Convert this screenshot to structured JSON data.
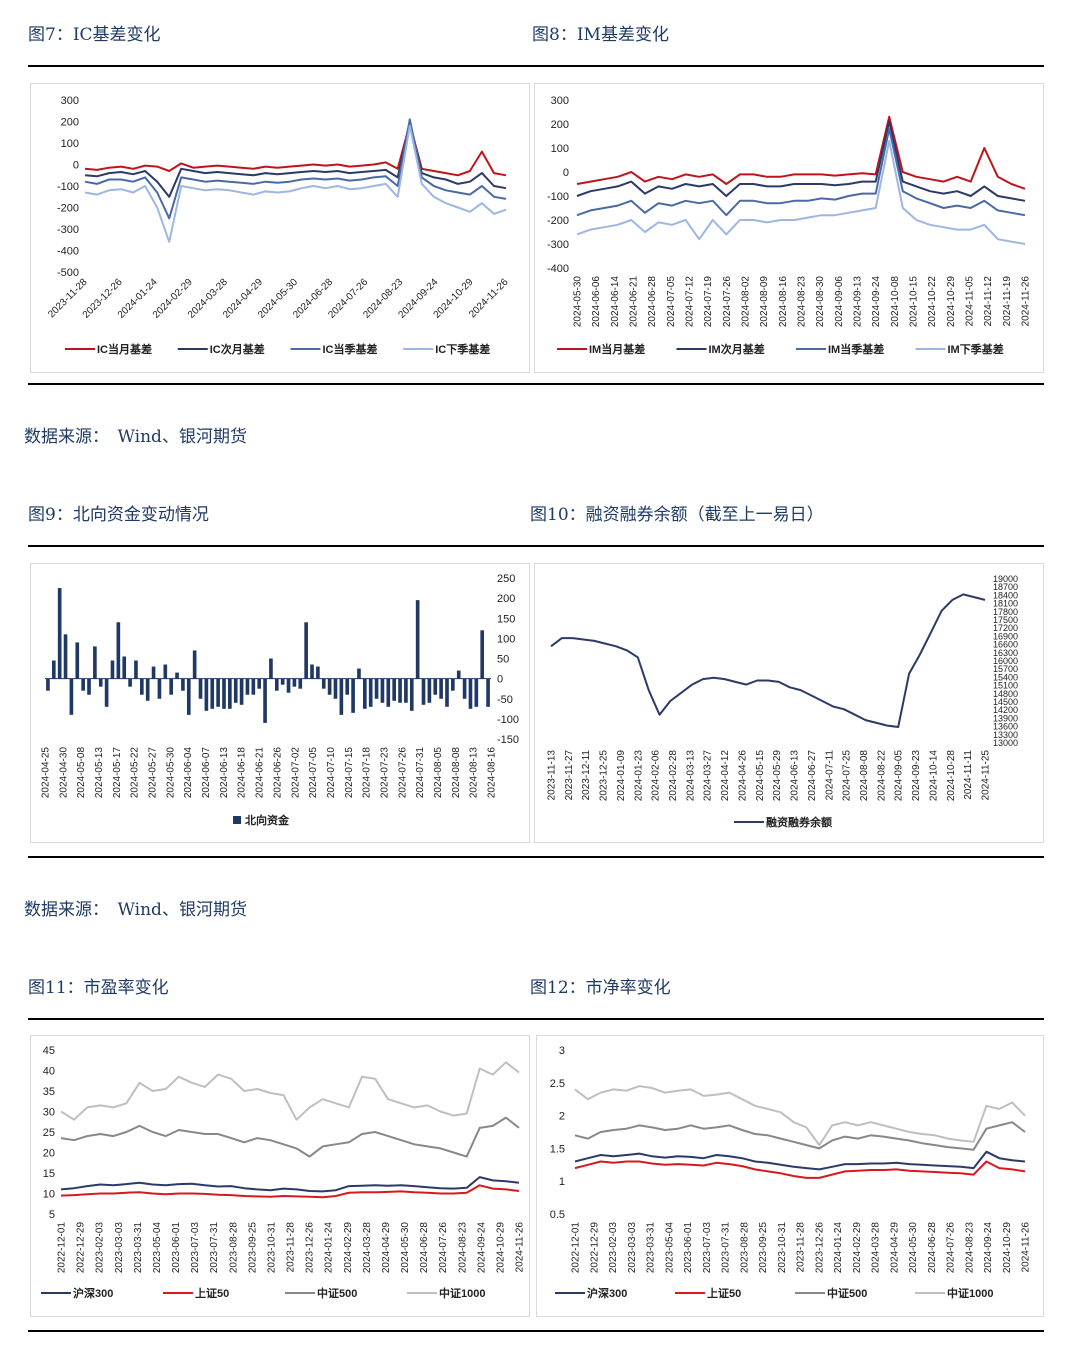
{
  "figures": {
    "fig7": {
      "title": "图7：IC基差变化"
    },
    "fig8": {
      "title": "图8：IM基差变化"
    },
    "fig9": {
      "title": "图9：北向资金变动情况"
    },
    "fig10": {
      "title": "图10：融资融券余额（截至上一易日）"
    },
    "fig11": {
      "title": "图11：市盈率变化"
    },
    "fig12": {
      "title": "图12：市净率变化"
    }
  },
  "sources": [
    "数据来源：　Wind、银河期货",
    "数据来源：　Wind、银河期货"
  ],
  "chart_data": [
    {
      "id": "fig7",
      "type": "line",
      "title": "",
      "ylim": [
        -500,
        300
      ],
      "yticks": [
        300,
        200,
        100,
        0,
        -100,
        -200,
        -300,
        -400,
        -500
      ],
      "xticks": [
        "2023-11-28",
        "2023-12-26",
        "2024-01-24",
        "2024-02-29",
        "2024-03-28",
        "2024-04-29",
        "2024-05-30",
        "2024-06-28",
        "2024-07-26",
        "2024-08-23",
        "2024-09-24",
        "2024-10-29",
        "2024-11-26"
      ],
      "legend_position": "bottom",
      "series": [
        {
          "name": "IC当月基差",
          "color": "#c0141c",
          "values": [
            -20,
            -25,
            -15,
            -10,
            -20,
            -5,
            -10,
            -30,
            5,
            -15,
            -10,
            -5,
            -10,
            -15,
            -20,
            -10,
            -15,
            -10,
            -5,
            0,
            -5,
            0,
            -10,
            -5,
            0,
            10,
            -20,
            190,
            -20,
            -30,
            -40,
            -50,
            -30,
            60,
            -40,
            -50
          ]
        },
        {
          "name": "IC次月基差",
          "color": "#2b3a67",
          "values": [
            -50,
            -55,
            -40,
            -35,
            -45,
            -30,
            -80,
            -150,
            -20,
            -30,
            -40,
            -35,
            -40,
            -45,
            -50,
            -40,
            -45,
            -40,
            -35,
            -30,
            -35,
            -30,
            -40,
            -35,
            -30,
            -25,
            -60,
            200,
            -40,
            -60,
            -70,
            -90,
            -80,
            -40,
            -100,
            -110
          ]
        },
        {
          "name": "IC当季基差",
          "color": "#4a6aa5",
          "values": [
            -80,
            -90,
            -70,
            -70,
            -80,
            -60,
            -130,
            -250,
            -60,
            -70,
            -80,
            -75,
            -80,
            -85,
            -90,
            -80,
            -85,
            -80,
            -70,
            -65,
            -70,
            -65,
            -75,
            -70,
            -60,
            -55,
            -100,
            210,
            -60,
            -100,
            -120,
            -130,
            -140,
            -100,
            -150,
            -160
          ]
        },
        {
          "name": "IC下季基差",
          "color": "#9db6e3",
          "values": [
            -130,
            -140,
            -120,
            -115,
            -130,
            -100,
            -200,
            -360,
            -100,
            -110,
            -120,
            -115,
            -120,
            -130,
            -140,
            -125,
            -130,
            -125,
            -110,
            -100,
            -110,
            -100,
            -115,
            -110,
            -100,
            -90,
            -150,
            180,
            -90,
            -150,
            -180,
            -200,
            -220,
            -180,
            -230,
            -210
          ]
        }
      ]
    },
    {
      "id": "fig8",
      "type": "line",
      "title": "",
      "ylim": [
        -400,
        300
      ],
      "yticks": [
        300,
        200,
        100,
        0,
        -100,
        -200,
        -300,
        -400
      ],
      "xticks": [
        "2024-05-30",
        "2024-06-06",
        "2024-06-14",
        "2024-06-21",
        "2024-06-28",
        "2024-07-05",
        "2024-07-12",
        "2024-07-19",
        "2024-07-26",
        "2024-08-02",
        "2024-08-09",
        "2024-08-16",
        "2024-08-23",
        "2024-08-30",
        "2024-09-06",
        "2024-09-13",
        "2024-09-24",
        "2024-10-08",
        "2024-10-15",
        "2024-10-22",
        "2024-10-29",
        "2024-11-05",
        "2024-11-12",
        "2024-11-19",
        "2024-11-26"
      ],
      "legend_position": "bottom",
      "series": [
        {
          "name": "IM当月基差",
          "color": "#c0141c",
          "values": [
            -50,
            -40,
            -30,
            -20,
            0,
            -40,
            -20,
            -30,
            -10,
            -20,
            -10,
            -50,
            -10,
            -10,
            -20,
            -20,
            -10,
            -10,
            -10,
            -15,
            -10,
            -5,
            -10,
            230,
            0,
            -20,
            -30,
            -40,
            -20,
            -40,
            100,
            -20,
            -50,
            -70
          ]
        },
        {
          "name": "IM次月基差",
          "color": "#2b3a67",
          "values": [
            -100,
            -80,
            -70,
            -60,
            -40,
            -90,
            -60,
            -70,
            -50,
            -60,
            -50,
            -100,
            -50,
            -50,
            -60,
            -60,
            -50,
            -50,
            -50,
            -55,
            -50,
            -40,
            -40,
            210,
            -40,
            -60,
            -80,
            -90,
            -80,
            -100,
            -60,
            -100,
            -110,
            -120
          ]
        },
        {
          "name": "IM当季基差",
          "color": "#4a6aa5",
          "values": [
            -180,
            -160,
            -150,
            -140,
            -120,
            -170,
            -130,
            -140,
            -120,
            -130,
            -120,
            -180,
            -120,
            -120,
            -130,
            -130,
            -120,
            -120,
            -110,
            -115,
            -100,
            -90,
            -90,
            180,
            -80,
            -110,
            -130,
            -150,
            -140,
            -150,
            -120,
            -160,
            -170,
            -180
          ]
        },
        {
          "name": "IM下季基差",
          "color": "#9db6e3",
          "values": [
            -260,
            -240,
            -230,
            -220,
            -200,
            -250,
            -210,
            -220,
            -200,
            -280,
            -200,
            -260,
            -200,
            -200,
            -210,
            -200,
            -200,
            -190,
            -180,
            -180,
            -170,
            -160,
            -150,
            130,
            -150,
            -200,
            -220,
            -230,
            -240,
            -240,
            -220,
            -280,
            -290,
            -300
          ]
        }
      ]
    },
    {
      "id": "fig9",
      "type": "bar",
      "title": "",
      "ylim": [
        -150,
        250
      ],
      "yticks": [
        250,
        200,
        150,
        100,
        50,
        0,
        -50,
        -100,
        -150
      ],
      "xticks": [
        "2024-04-25",
        "2024-04-30",
        "2024-05-08",
        "2024-05-13",
        "2024-05-17",
        "2024-05-22",
        "2024-05-27",
        "2024-05-30",
        "2024-06-04",
        "2024-06-07",
        "2024-06-13",
        "2024-06-18",
        "2024-06-21",
        "2024-06-26",
        "2024-07-02",
        "2024-07-05",
        "2024-07-10",
        "2024-07-15",
        "2024-07-18",
        "2024-07-23",
        "2024-07-26",
        "2024-07-31",
        "2024-08-05",
        "2024-08-08",
        "2024-08-13",
        "2024-08-16"
      ],
      "legend_position": "bottom",
      "series": [
        {
          "name": "北向资金",
          "color": "#1f3864",
          "values": [
            -30,
            45,
            225,
            110,
            -90,
            90,
            -30,
            -40,
            80,
            -20,
            -70,
            45,
            140,
            55,
            -20,
            45,
            -40,
            -55,
            30,
            -50,
            35,
            -40,
            15,
            -30,
            -90,
            70,
            -50,
            -80,
            -75,
            -70,
            -75,
            -75,
            -60,
            -65,
            -40,
            -40,
            -25,
            -110,
            50,
            -30,
            -15,
            -35,
            -20,
            -25,
            140,
            35,
            30,
            -25,
            -40,
            -50,
            -90,
            -40,
            -85,
            25,
            -75,
            -70,
            -50,
            -60,
            -70,
            -55,
            -60,
            -60,
            -80,
            195,
            -65,
            -60,
            -40,
            -50,
            -70,
            -30,
            20,
            -50,
            -75,
            -70,
            120,
            -70
          ]
        }
      ]
    },
    {
      "id": "fig10",
      "type": "line",
      "title": "",
      "ylim": [
        13000,
        19000
      ],
      "yticks": [
        19000,
        18700,
        18400,
        18100,
        17800,
        17500,
        17200,
        16900,
        16600,
        16300,
        16000,
        15700,
        15400,
        15100,
        14800,
        14500,
        14200,
        13900,
        13600,
        13300,
        13000
      ],
      "xticks": [
        "2023-11-13",
        "2023-11-27",
        "2023-12-11",
        "2023-12-25",
        "2024-01-09",
        "2024-01-23",
        "2024-02-06",
        "2024-02-28",
        "2024-03-13",
        "2024-03-27",
        "2024-04-12",
        "2024-04-26",
        "2024-05-15",
        "2024-05-29",
        "2024-06-13",
        "2024-06-27",
        "2024-07-11",
        "2024-07-25",
        "2024-08-08",
        "2024-08-22",
        "2024-09-05",
        "2024-09-23",
        "2024-10-14",
        "2024-10-28",
        "2024-11-11",
        "2024-11-25"
      ],
      "legend_position": "bottom",
      "series": [
        {
          "name": "融资融券余额",
          "color": "#2b3a67",
          "values": [
            16500,
            16800,
            16800,
            16750,
            16700,
            16600,
            16500,
            16350,
            16100,
            14900,
            14000,
            14500,
            14800,
            15100,
            15300,
            15350,
            15300,
            15200,
            15100,
            15250,
            15250,
            15200,
            15000,
            14900,
            14700,
            14500,
            14300,
            14200,
            14000,
            13800,
            13700,
            13600,
            13550,
            15500,
            16200,
            17000,
            17800,
            18200,
            18400,
            18300,
            18200
          ]
        }
      ]
    },
    {
      "id": "fig11",
      "type": "line",
      "title": "",
      "ylim": [
        5,
        45
      ],
      "yticks": [
        45,
        40,
        35,
        30,
        25,
        20,
        15,
        10,
        5
      ],
      "xticks": [
        "2022-12-01",
        "2022-12-29",
        "2023-02-03",
        "2023-03-03",
        "2023-03-31",
        "2023-05-04",
        "2023-06-01",
        "2023-07-03",
        "2023-07-31",
        "2023-08-28",
        "2023-09-25",
        "2023-10-31",
        "2023-11-28",
        "2023-12-26",
        "2024-01-24",
        "2024-02-29",
        "2024-03-28",
        "2024-04-29",
        "2024-05-30",
        "2024-06-28",
        "2024-07-26",
        "2024-08-23",
        "2024-09-24",
        "2024-10-29",
        "2024-11-26"
      ],
      "legend_position": "bottom",
      "series": [
        {
          "name": "沪深300",
          "color": "#2b3a67",
          "values": [
            11.0,
            11.3,
            11.8,
            12.2,
            12.0,
            12.3,
            12.6,
            12.2,
            12.0,
            12.3,
            12.4,
            12.0,
            11.7,
            11.8,
            11.3,
            11.0,
            10.8,
            11.2,
            11.0,
            10.6,
            10.5,
            10.8,
            11.8,
            11.9,
            12.0,
            11.9,
            12.0,
            11.8,
            11.5,
            11.3,
            11.2,
            11.4,
            14.0,
            13.2,
            13.0,
            12.6
          ]
        },
        {
          "name": "上证50",
          "color": "#d7191c",
          "values": [
            9.5,
            9.6,
            9.8,
            10.0,
            10.0,
            10.2,
            10.3,
            10.0,
            9.8,
            10.0,
            10.0,
            9.9,
            9.7,
            9.6,
            9.4,
            9.3,
            9.2,
            9.4,
            9.3,
            9.2,
            9.1,
            9.4,
            10.2,
            10.3,
            10.3,
            10.4,
            10.5,
            10.3,
            10.2,
            10.0,
            10.0,
            10.2,
            12.0,
            11.2,
            11.0,
            10.6
          ]
        },
        {
          "name": "中证500",
          "color": "#888888",
          "values": [
            23.5,
            23.0,
            24.0,
            24.5,
            24.0,
            25.0,
            26.5,
            25.0,
            24.0,
            25.5,
            25.0,
            24.5,
            24.5,
            23.5,
            22.5,
            23.5,
            23.0,
            22.0,
            21.0,
            19.0,
            21.5,
            22.0,
            22.5,
            24.5,
            25.0,
            24.0,
            23.0,
            22.0,
            21.5,
            21.0,
            20.0,
            19.0,
            26.0,
            26.5,
            28.5,
            26.0
          ]
        },
        {
          "name": "中证1000",
          "color": "#bfbfbf",
          "values": [
            30.0,
            28.0,
            31.0,
            31.5,
            31.0,
            32.0,
            37.0,
            35.0,
            35.5,
            38.5,
            37.0,
            36.0,
            39.0,
            38.0,
            35.0,
            35.5,
            34.5,
            34.0,
            28.0,
            31.0,
            33.0,
            32.0,
            31.0,
            38.5,
            38.0,
            33.0,
            32.0,
            31.0,
            31.5,
            30.0,
            29.0,
            29.5,
            40.5,
            39.0,
            42.0,
            39.5
          ]
        }
      ]
    },
    {
      "id": "fig12",
      "type": "line",
      "title": "",
      "ylim": [
        0.5,
        3.0
      ],
      "yticks": [
        3.0,
        2.5,
        2.0,
        1.5,
        1.0,
        0.5
      ],
      "xticks": [
        "2022-12-01",
        "2022-12-29",
        "2023-02-03",
        "2023-03-03",
        "2023-03-31",
        "2023-05-04",
        "2023-06-01",
        "2023-07-03",
        "2023-07-31",
        "2023-08-28",
        "2023-09-25",
        "2023-10-31",
        "2023-11-28",
        "2023-12-26",
        "2024-01-24",
        "2024-02-29",
        "2024-03-28",
        "2024-04-29",
        "2024-05-30",
        "2024-06-28",
        "2024-07-26",
        "2024-08-23",
        "2024-09-24",
        "2024-10-29",
        "2024-11-26"
      ],
      "legend_position": "bottom",
      "series": [
        {
          "name": "沪深300",
          "color": "#2b3a67",
          "values": [
            1.3,
            1.35,
            1.4,
            1.38,
            1.4,
            1.42,
            1.38,
            1.36,
            1.38,
            1.37,
            1.35,
            1.4,
            1.38,
            1.35,
            1.3,
            1.28,
            1.25,
            1.22,
            1.2,
            1.18,
            1.22,
            1.26,
            1.26,
            1.27,
            1.27,
            1.28,
            1.26,
            1.25,
            1.24,
            1.23,
            1.22,
            1.2,
            1.45,
            1.35,
            1.32,
            1.3
          ]
        },
        {
          "name": "上证50",
          "color": "#d7191c",
          "values": [
            1.2,
            1.25,
            1.3,
            1.28,
            1.3,
            1.3,
            1.27,
            1.25,
            1.26,
            1.25,
            1.24,
            1.28,
            1.26,
            1.23,
            1.18,
            1.15,
            1.12,
            1.08,
            1.05,
            1.05,
            1.1,
            1.15,
            1.16,
            1.17,
            1.17,
            1.18,
            1.16,
            1.15,
            1.14,
            1.13,
            1.12,
            1.1,
            1.3,
            1.2,
            1.18,
            1.15
          ]
        },
        {
          "name": "中证500",
          "color": "#888888",
          "values": [
            1.7,
            1.65,
            1.75,
            1.78,
            1.8,
            1.85,
            1.82,
            1.78,
            1.8,
            1.85,
            1.8,
            1.82,
            1.85,
            1.78,
            1.72,
            1.7,
            1.65,
            1.6,
            1.55,
            1.5,
            1.62,
            1.68,
            1.65,
            1.7,
            1.68,
            1.65,
            1.62,
            1.58,
            1.55,
            1.52,
            1.5,
            1.48,
            1.8,
            1.85,
            1.9,
            1.75
          ]
        },
        {
          "name": "中证1000",
          "color": "#bfbfbf",
          "values": [
            2.4,
            2.25,
            2.35,
            2.4,
            2.38,
            2.45,
            2.42,
            2.35,
            2.38,
            2.4,
            2.3,
            2.32,
            2.35,
            2.25,
            2.15,
            2.1,
            2.05,
            1.9,
            1.82,
            1.55,
            1.85,
            1.9,
            1.85,
            1.9,
            1.85,
            1.8,
            1.75,
            1.72,
            1.7,
            1.65,
            1.62,
            1.6,
            2.15,
            2.1,
            2.2,
            2.0
          ]
        }
      ]
    }
  ]
}
